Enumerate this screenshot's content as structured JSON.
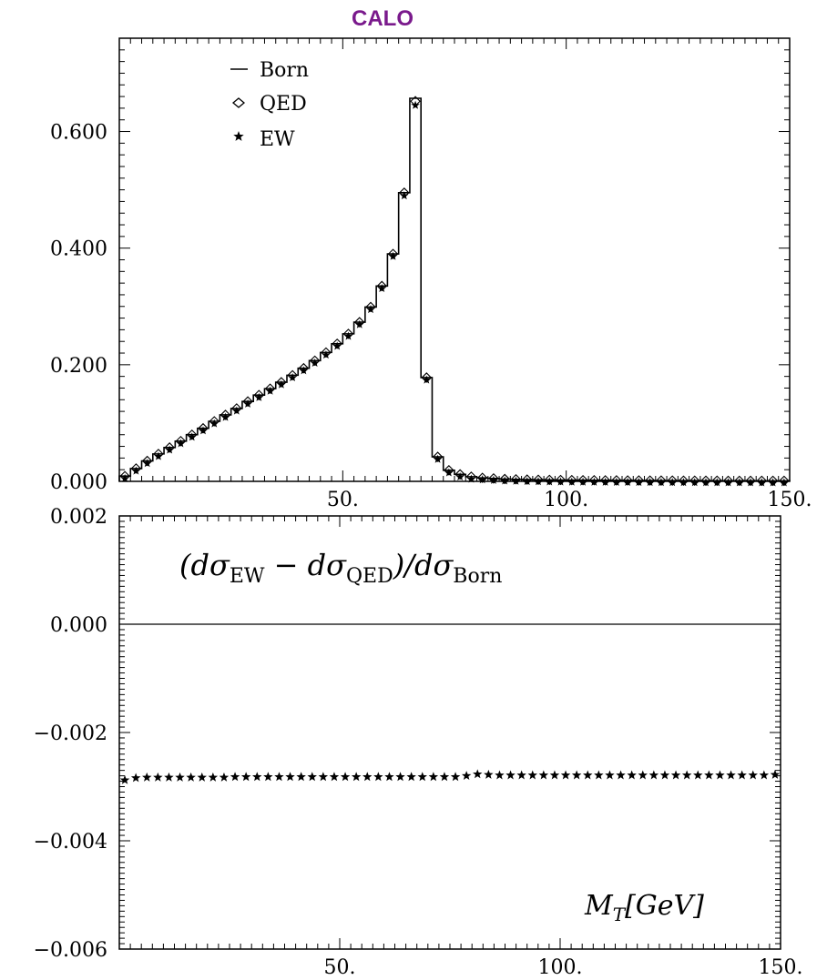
{
  "figure_title": "CALO",
  "title_color": "#7a1a8c",
  "chart_data": [
    {
      "type": "histogram",
      "xlim": [
        0,
        150
      ],
      "ylim": [
        0,
        0.76
      ],
      "x_ticks": [
        {
          "value": 50,
          "label": "50."
        },
        {
          "value": 100,
          "label": "100."
        },
        {
          "value": 150,
          "label": "150."
        }
      ],
      "y_ticks": [
        {
          "value": 0.0,
          "label": "0.000"
        },
        {
          "value": 0.2,
          "label": "0.200"
        },
        {
          "value": 0.4,
          "label": "0.400"
        },
        {
          "value": 0.6,
          "label": "0.600"
        }
      ],
      "bin_width": 2.5,
      "bin_centers": [
        1.25,
        3.75,
        6.25,
        8.75,
        11.25,
        13.75,
        16.25,
        18.75,
        21.25,
        23.75,
        26.25,
        28.75,
        31.25,
        33.75,
        36.25,
        38.75,
        41.25,
        43.75,
        46.25,
        48.75,
        51.25,
        53.75,
        56.25,
        58.75,
        61.25,
        63.75,
        66.25,
        68.75,
        71.25,
        73.75,
        76.25,
        78.75,
        81.25,
        83.75,
        86.25,
        88.75,
        91.25,
        93.75,
        96.25,
        98.75,
        101.25,
        103.75,
        106.25,
        108.75,
        111.25,
        113.75,
        116.25,
        118.75,
        121.25,
        123.75,
        126.25,
        128.75,
        131.25,
        133.75,
        136.25,
        138.75,
        141.25,
        143.75,
        146.25,
        148.75
      ],
      "series": [
        {
          "name": "Born",
          "marker": "line",
          "values": [
            0.009,
            0.022,
            0.035,
            0.047,
            0.058,
            0.069,
            0.08,
            0.091,
            0.103,
            0.114,
            0.125,
            0.137,
            0.148,
            0.159,
            0.17,
            0.182,
            0.194,
            0.207,
            0.221,
            0.236,
            0.253,
            0.273,
            0.299,
            0.335,
            0.39,
            0.495,
            0.657,
            0.178,
            0.042,
            0.019,
            0.012,
            0.008,
            0.006,
            0.005,
            0.004,
            0.0035,
            0.003,
            0.0027,
            0.0025,
            0.0023,
            0.0021,
            0.002,
            0.0019,
            0.0018,
            0.0017,
            0.0016,
            0.0015,
            0.0014,
            0.0013,
            0.0013,
            0.0012,
            0.0012,
            0.0011,
            0.0011,
            0.001,
            0.001,
            0.001,
            0.0009,
            0.0009,
            0.0009
          ]
        },
        {
          "name": "QED",
          "marker": "diamond",
          "values": [
            0.009,
            0.022,
            0.035,
            0.047,
            0.058,
            0.069,
            0.08,
            0.091,
            0.103,
            0.114,
            0.125,
            0.137,
            0.148,
            0.159,
            0.17,
            0.182,
            0.194,
            0.207,
            0.221,
            0.236,
            0.253,
            0.273,
            0.299,
            0.335,
            0.39,
            0.495,
            0.652,
            0.178,
            0.042,
            0.019,
            0.012,
            0.008,
            0.006,
            0.005,
            0.004,
            0.0035,
            0.003,
            0.0027,
            0.0025,
            0.0023,
            0.0021,
            0.002,
            0.0019,
            0.0018,
            0.0017,
            0.0016,
            0.0015,
            0.0014,
            0.0013,
            0.0013,
            0.0012,
            0.0012,
            0.0011,
            0.0011,
            0.001,
            0.001,
            0.001,
            0.0009,
            0.0009,
            0.0009
          ]
        },
        {
          "name": "EW",
          "marker": "star",
          "values": [
            0.008,
            0.021,
            0.034,
            0.046,
            0.057,
            0.068,
            0.079,
            0.09,
            0.102,
            0.113,
            0.124,
            0.136,
            0.147,
            0.158,
            0.169,
            0.181,
            0.193,
            0.206,
            0.22,
            0.235,
            0.252,
            0.272,
            0.298,
            0.334,
            0.389,
            0.493,
            0.648,
            0.177,
            0.041,
            0.018,
            0.011,
            0.007,
            0.006,
            0.005,
            0.004,
            0.0035,
            0.003,
            0.0027,
            0.0025,
            0.0023,
            0.0021,
            0.002,
            0.0019,
            0.0018,
            0.0017,
            0.0016,
            0.0015,
            0.0014,
            0.0013,
            0.0013,
            0.0012,
            0.0012,
            0.0011,
            0.0011,
            0.001,
            0.001,
            0.001,
            0.0009,
            0.0009,
            0.0009
          ]
        }
      ]
    },
    {
      "type": "scatter",
      "xlim": [
        0,
        150
      ],
      "ylim": [
        -0.006,
        0.002
      ],
      "annotation": "(dσ_EW − dσ_QED)/dσ_Born",
      "xlabel": "M_T[GeV]",
      "x_ticks": [
        {
          "value": 50,
          "label": "50."
        },
        {
          "value": 100,
          "label": "100."
        },
        {
          "value": 150,
          "label": "150."
        }
      ],
      "y_ticks": [
        {
          "value": 0.002,
          "label": "0.002"
        },
        {
          "value": 0.0,
          "label": "0.000"
        },
        {
          "value": -0.002,
          "label": "−0.002"
        },
        {
          "value": -0.004,
          "label": "−0.004"
        },
        {
          "value": -0.006,
          "label": "−0.006"
        }
      ],
      "reference_line": 0.0,
      "x": [
        1.25,
        3.75,
        6.25,
        8.75,
        11.25,
        13.75,
        16.25,
        18.75,
        21.25,
        23.75,
        26.25,
        28.75,
        31.25,
        33.75,
        36.25,
        38.75,
        41.25,
        43.75,
        46.25,
        48.75,
        51.25,
        53.75,
        56.25,
        58.75,
        61.25,
        63.75,
        66.25,
        68.75,
        71.25,
        73.75,
        76.25,
        78.75,
        81.25,
        83.75,
        86.25,
        88.75,
        91.25,
        93.75,
        96.25,
        98.75,
        101.25,
        103.75,
        106.25,
        108.75,
        111.25,
        113.75,
        116.25,
        118.75,
        121.25,
        123.75,
        126.25,
        128.75,
        131.25,
        133.75,
        136.25,
        138.75,
        141.25,
        143.75,
        146.25,
        148.75
      ],
      "values": [
        -0.00288,
        -0.00284,
        -0.00283,
        -0.00283,
        -0.00283,
        -0.00283,
        -0.00283,
        -0.00283,
        -0.00283,
        -0.00283,
        -0.00282,
        -0.00282,
        -0.00282,
        -0.00282,
        -0.00282,
        -0.00282,
        -0.00282,
        -0.00282,
        -0.00282,
        -0.00282,
        -0.00282,
        -0.00282,
        -0.00282,
        -0.00282,
        -0.00282,
        -0.00282,
        -0.00282,
        -0.00282,
        -0.00282,
        -0.00282,
        -0.00282,
        -0.0028,
        -0.00277,
        -0.00278,
        -0.00279,
        -0.00279,
        -0.00279,
        -0.00279,
        -0.00279,
        -0.00279,
        -0.00279,
        -0.00279,
        -0.00279,
        -0.00279,
        -0.00279,
        -0.00279,
        -0.00279,
        -0.00279,
        -0.00279,
        -0.00279,
        -0.00279,
        -0.00279,
        -0.00279,
        -0.00279,
        -0.00279,
        -0.00279,
        -0.00279,
        -0.00279,
        -0.00279,
        -0.00278
      ]
    }
  ]
}
